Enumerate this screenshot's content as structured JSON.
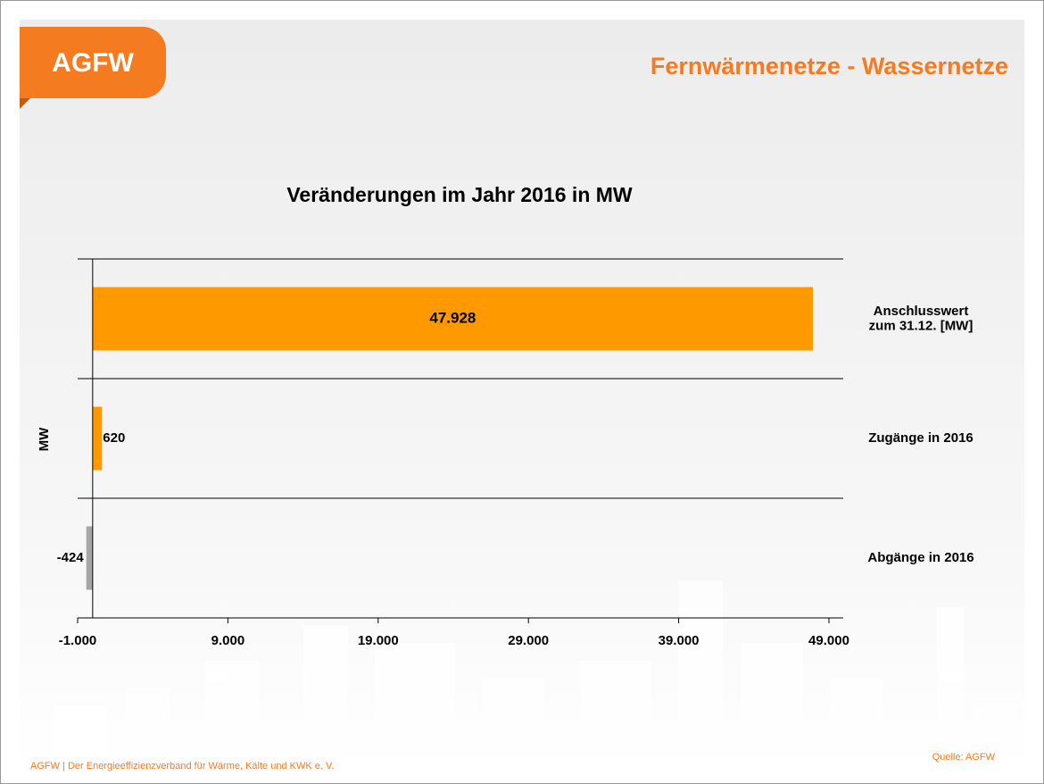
{
  "header": {
    "logo": "AGFW",
    "title": "Fernwärmenetze - Wassernetze"
  },
  "footer": {
    "text": "AGFW | Der Energieeffizienzverband für Wärme, Kälte und KWK e. V.",
    "source": "Quelle: AGFW"
  },
  "chart_data": {
    "type": "hbar",
    "title": "Veränderungen im Jahr 2016 in MW",
    "y_label": "MW",
    "categories": [
      "Anschlusswert\nzum 31.12. [MW]",
      "Zugänge in 2016",
      "Abgänge in 2016"
    ],
    "values": [
      47928,
      620,
      -424
    ],
    "value_labels": [
      "47.928",
      "620",
      "-424"
    ],
    "colors": [
      "#ff9900",
      "#ff9900",
      "#a6a6a6"
    ],
    "xlim": [
      -1000,
      49000
    ],
    "xticks": [
      {
        "value": -1000,
        "label": "-1.000"
      },
      {
        "value": 9000,
        "label": "9.000"
      },
      {
        "value": 19000,
        "label": "19.000"
      },
      {
        "value": 29000,
        "label": "29.000"
      },
      {
        "value": 39000,
        "label": "39.000"
      },
      {
        "value": 49000,
        "label": "49.000"
      }
    ]
  }
}
